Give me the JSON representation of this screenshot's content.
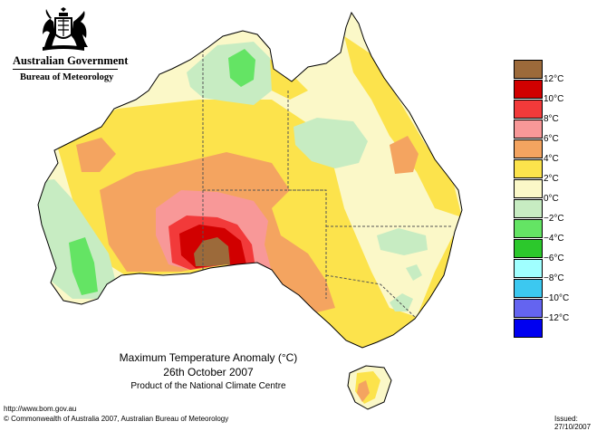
{
  "header": {
    "government": "Australian Government",
    "bureau": "Bureau of Meteorology"
  },
  "title": {
    "line1": "Maximum Temperature Anomaly (°C)",
    "line2": "26th October 2007",
    "line3": "Product of the National Climate Centre"
  },
  "legend": {
    "items": [
      {
        "label": "12°C",
        "color": "#9c6a3a"
      },
      {
        "label": "10°C",
        "color": "#d10000"
      },
      {
        "label": "8°C",
        "color": "#f23a3a"
      },
      {
        "label": "6°C",
        "color": "#f89898"
      },
      {
        "label": "4°C",
        "color": "#f4a460"
      },
      {
        "label": "2°C",
        "color": "#fce34c"
      },
      {
        "label": "0°C",
        "color": "#fbf8c8"
      },
      {
        "label": "−2°C",
        "color": "#c7ecc2"
      },
      {
        "label": "−4°C",
        "color": "#64e464"
      },
      {
        "label": "−6°C",
        "color": "#2cc82c"
      },
      {
        "label": "−8°C",
        "color": "#a0ffff"
      },
      {
        "label": "−10°C",
        "color": "#3cc8f0"
      },
      {
        "label": "−12°C",
        "color": "#6464f0"
      },
      {
        "label": "",
        "color": "#0000f0"
      }
    ]
  },
  "footer": {
    "url": "http://www.bom.gov.au",
    "copyright": "© Commonwealth of Australia 2007, Australian Bureau of Meteorology",
    "issued": "Issued: 27/10/2007"
  },
  "colors": {
    "zero": "#fbf8c8",
    "plus2": "#fce34c",
    "plus4": "#f4a460",
    "plus6": "#f89898",
    "plus8": "#f23a3a",
    "plus10": "#d10000",
    "plus12": "#9c6a3a",
    "minus2": "#c7ecc2",
    "minus4": "#64e464"
  }
}
